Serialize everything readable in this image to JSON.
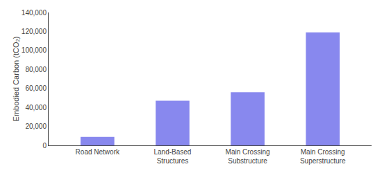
{
  "chart_data": {
    "type": "bar",
    "categories": [
      "Road Network",
      "Land-Based\nStructures",
      "Main Crossing\nSubstructure",
      "Main Crossing\nSuperstructure"
    ],
    "values": [
      9000,
      47000,
      56000,
      119000
    ],
    "color": "#8888ee",
    "ylabel": "Embodied Carbon (tCO₂)",
    "ylim": [
      0,
      140000
    ],
    "yticks": [
      0,
      {
        "value": 20000,
        "label": "20,000"
      },
      {
        "value": 40000,
        "label": "40,000"
      },
      {
        "value": 60000,
        "label": "60,000"
      },
      {
        "value": 80000,
        "label": "80,000"
      },
      {
        "value": 100000,
        "label": "100,000"
      },
      {
        "value": 120000,
        "label": "120,000"
      },
      {
        "value": 140000,
        "label": "140,000"
      }
    ],
    "grid": false
  }
}
